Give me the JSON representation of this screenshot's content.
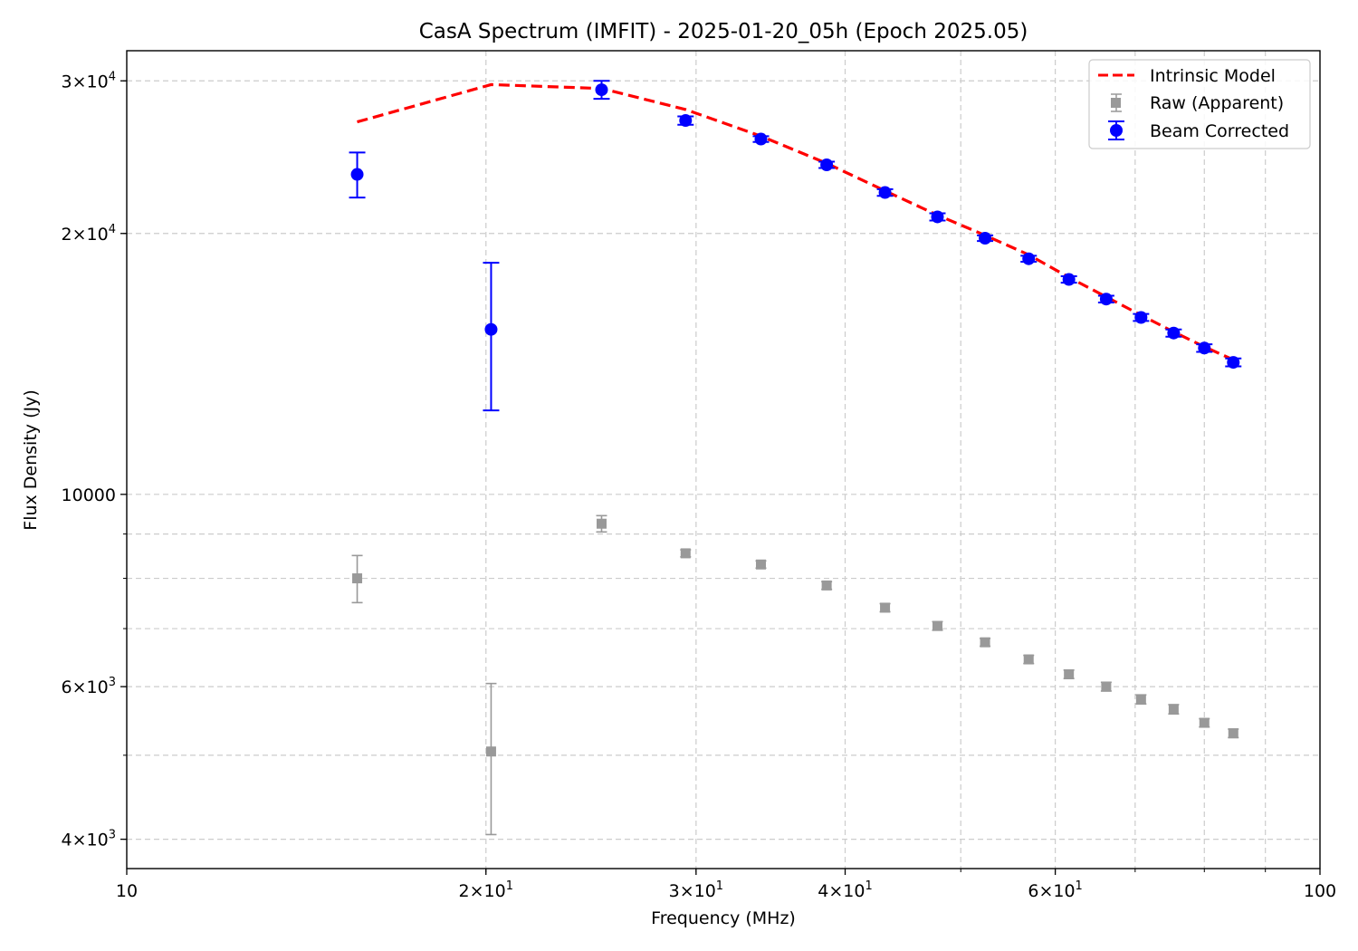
{
  "chart_data": {
    "type": "scatter",
    "title": "CasA Spectrum (IMFIT) - 2025-01-20_05h (Epoch 2025.05)",
    "xlabel": "Frequency (MHz)",
    "ylabel": "Flux Density (Jy)",
    "xscale": "log",
    "yscale": "log",
    "xlim": [
      10,
      100
    ],
    "ylim": [
      3700,
      32500
    ],
    "grid": true,
    "legend_position": "top-right",
    "x_ticks": [
      {
        "value": 10,
        "base": "10",
        "exp": ""
      },
      {
        "value": 20,
        "base": "2×10",
        "exp": "1"
      },
      {
        "value": 30,
        "base": "3×10",
        "exp": "1"
      },
      {
        "value": 40,
        "base": "4×10",
        "exp": "1"
      },
      {
        "value": 60,
        "base": "6×10",
        "exp": "1"
      },
      {
        "value": 100,
        "base": "100",
        "exp": ""
      }
    ],
    "y_ticks": [
      {
        "value": 4000,
        "base": "4×10",
        "exp": "3"
      },
      {
        "value": 6000,
        "base": "6×10",
        "exp": "3"
      },
      {
        "value": 10000,
        "base": "10000",
        "exp": ""
      },
      {
        "value": 20000,
        "base": "2×10",
        "exp": "4"
      },
      {
        "value": 30000,
        "base": "3×10",
        "exp": "4"
      }
    ],
    "legend": [
      "Intrinsic Model",
      "Raw (Apparent)",
      "Beam Corrected"
    ],
    "series": [
      {
        "name": "Intrinsic Model",
        "kind": "line",
        "color": "#ff0000",
        "x": [
          15.6,
          20.2,
          25.0,
          29.4,
          34.0,
          38.6,
          43.2,
          47.8,
          52.4,
          57.0,
          61.6,
          66.2,
          70.8,
          75.4,
          80.0,
          84.6
        ],
        "y": [
          26900,
          29700,
          29400,
          27800,
          25900,
          24100,
          22400,
          21000,
          19900,
          18900,
          17800,
          16900,
          16100,
          15400,
          14800,
          14300
        ]
      },
      {
        "name": "Raw (Apparent)",
        "kind": "errorbar",
        "color": "#999999",
        "x": [
          15.6,
          20.2,
          25.0,
          29.4,
          34.0,
          38.6,
          43.2,
          47.8,
          52.4,
          57.0,
          61.6,
          66.2,
          70.8,
          75.4,
          80.0,
          84.6
        ],
        "y": [
          8000,
          5050,
          9250,
          8550,
          8300,
          7850,
          7400,
          7050,
          6750,
          6450,
          6200,
          6000,
          5800,
          5650,
          5450,
          5300
        ],
        "yerr": [
          500,
          1000,
          200,
          80,
          80,
          80,
          80,
          80,
          70,
          70,
          70,
          70,
          70,
          70,
          60,
          60
        ]
      },
      {
        "name": "Beam Corrected",
        "kind": "errorbar",
        "color": "#0000ff",
        "x": [
          15.6,
          20.2,
          25.0,
          29.4,
          34.0,
          38.6,
          43.2,
          47.8,
          52.4,
          57.0,
          61.6,
          66.2,
          70.8,
          75.4,
          80.0,
          84.6
        ],
        "y": [
          23400,
          15500,
          29300,
          27000,
          25700,
          24000,
          22300,
          20900,
          19750,
          18700,
          17700,
          16800,
          16000,
          15350,
          14750,
          14200
        ],
        "yerr": [
          1400,
          3000,
          700,
          300,
          200,
          200,
          200,
          200,
          150,
          150,
          150,
          150,
          150,
          150,
          150,
          150
        ]
      }
    ]
  }
}
